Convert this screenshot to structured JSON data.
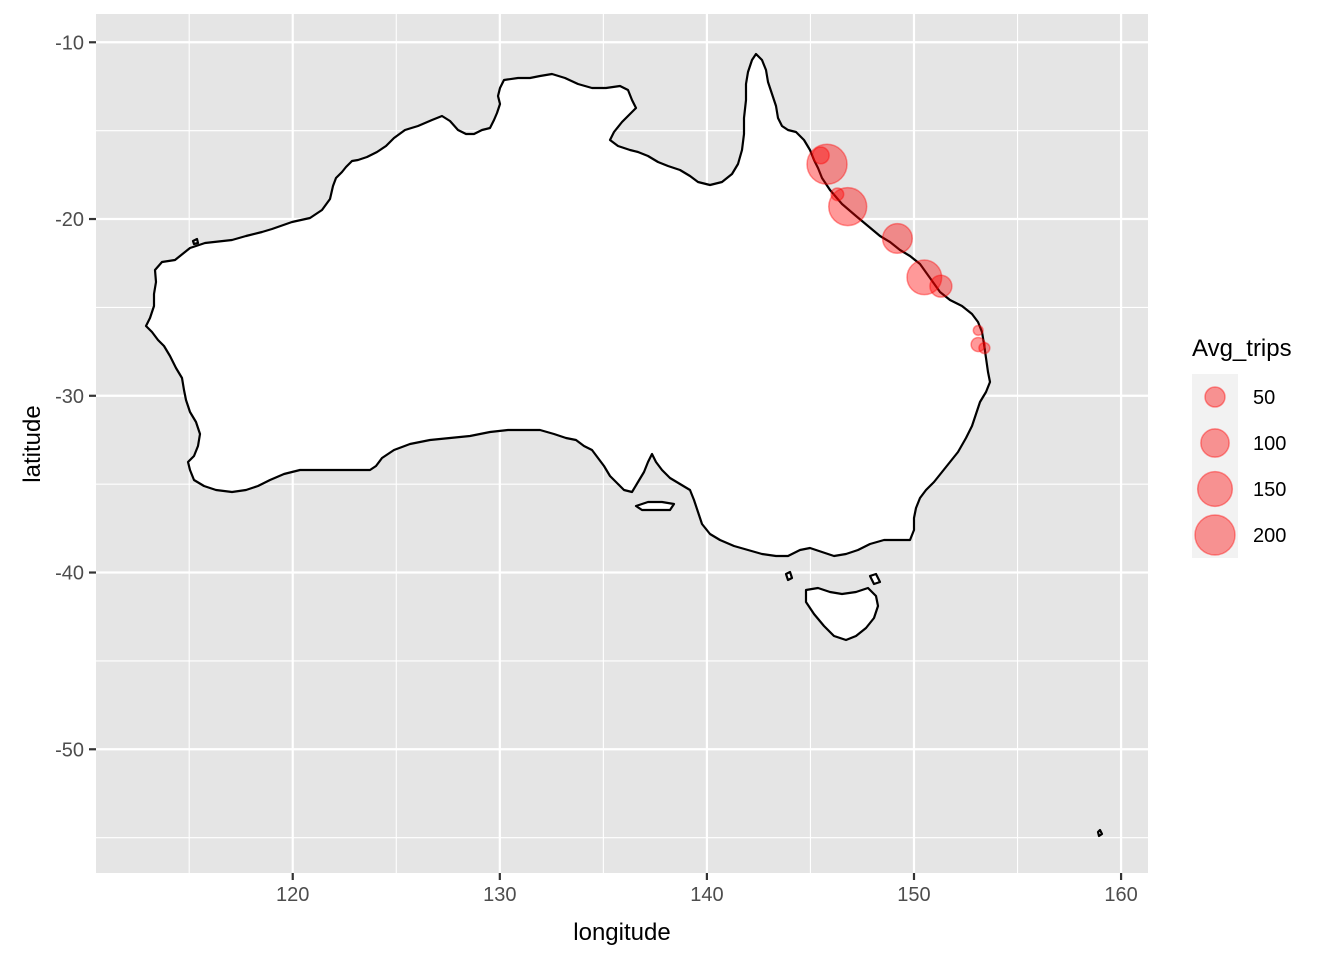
{
  "chart_data": {
    "type": "scatter",
    "title": "",
    "xlabel": "longitude",
    "ylabel": "latitude",
    "xlim": [
      110.5,
      161.3
    ],
    "ylim": [
      -57,
      -8.4
    ],
    "x_ticks": [
      120,
      130,
      140,
      150,
      160
    ],
    "y_ticks": [
      -10,
      -20,
      -30,
      -40,
      -50
    ],
    "x_tick_labels": [
      "120",
      "130",
      "140",
      "150",
      "160"
    ],
    "y_tick_labels": [
      "-10",
      "-20",
      "-30",
      "-40",
      "-50"
    ],
    "grid": true,
    "legend": {
      "title": "Avg_trips",
      "position": "right",
      "breaks": [
        50,
        100,
        150,
        200
      ],
      "labels": [
        "50",
        "100",
        "150",
        "200"
      ]
    },
    "colors": {
      "panel": "#e5e5e5",
      "grid": "#ffffff",
      "point": "#ff0000",
      "coastline": "#000000",
      "land": "#ffffff"
    },
    "points": [
      {
        "x": 145.5,
        "y": -16.4,
        "size": 35
      },
      {
        "x": 145.8,
        "y": -16.9,
        "size": 200
      },
      {
        "x": 146.3,
        "y": -18.6,
        "size": 20
      },
      {
        "x": 146.8,
        "y": -19.3,
        "size": 180
      },
      {
        "x": 149.2,
        "y": -21.1,
        "size": 110
      },
      {
        "x": 150.5,
        "y": -23.3,
        "size": 150
      },
      {
        "x": 151.3,
        "y": -23.8,
        "size": 60
      },
      {
        "x": 153.1,
        "y": -26.3,
        "size": 12
      },
      {
        "x": 153.1,
        "y": -27.1,
        "size": 25
      },
      {
        "x": 153.4,
        "y": -27.3,
        "size": 15
      }
    ]
  }
}
